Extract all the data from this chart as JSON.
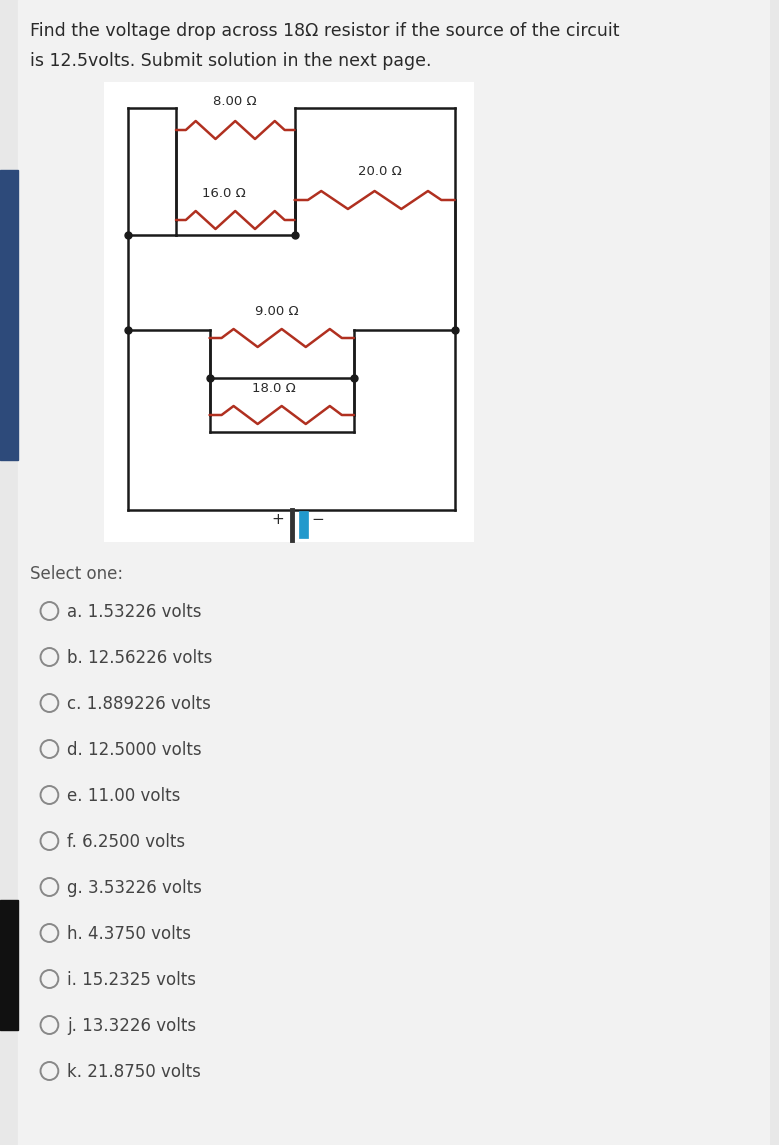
{
  "title_line1": "Find the voltage drop across 18Ω resistor if the source of the circuit",
  "title_line2": "is 12.5volts. Submit solution in the next page.",
  "resistors": [
    {
      "label": "8.00 Ω",
      "value": 8.0
    },
    {
      "label": "16.0 Ω",
      "value": 16.0
    },
    {
      "label": "20.0 Ω",
      "value": 20.0
    },
    {
      "label": "9.00 Ω",
      "value": 9.0
    },
    {
      "label": "18.0 Ω",
      "value": 18.0
    }
  ],
  "select_one_text": "Select one:",
  "options": [
    "a. 1.53226 volts",
    "b. 12.56226 volts",
    "c. 1.889226 volts",
    "d. 12.5000 volts",
    "e. 11.00 volts",
    "f. 6.2500 volts",
    "g. 3.53226 volts",
    "h. 4.3750 volts",
    "i. 15.2325 volts",
    "j. 13.3226 volts",
    "k. 21.8750 volts"
  ],
  "page_bg": "#e8e8e8",
  "content_bg": "#f2f2f2",
  "circuit_bg": "#ffffff",
  "resistor_color": "#b03020",
  "wire_color": "#1a1a1a",
  "text_color": "#2a2a2a",
  "option_text_color": "#444444",
  "select_text_color": "#555555",
  "battery_blue": "#2299cc",
  "battery_dark": "#333333",
  "sidebar_color": "#2d4a7a",
  "sidebar_bottom_color": "#111111"
}
